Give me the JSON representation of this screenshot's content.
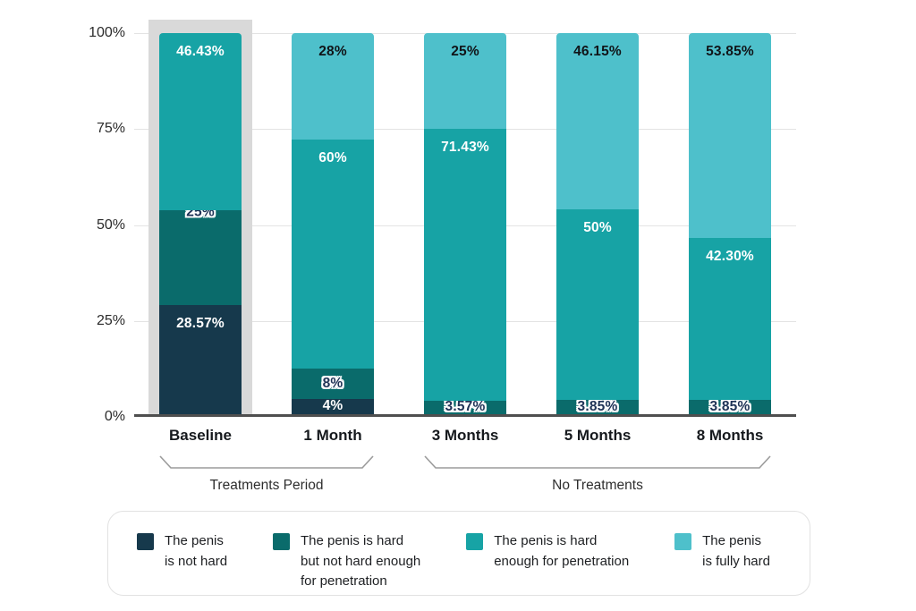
{
  "chart_data": {
    "type": "bar",
    "stacked": true,
    "title": "",
    "xlabel": "",
    "ylabel": "",
    "ylim": [
      0,
      100
    ],
    "yticks": [
      "0%",
      "25%",
      "50%",
      "75%",
      "100%"
    ],
    "grid": true,
    "legend_position": "bottom",
    "categories": [
      "Baseline",
      "1 Month",
      "3 Months",
      "5 Months",
      "8 Months"
    ],
    "series": [
      {
        "name": "The penis is not hard",
        "color": "#16394c",
        "values": [
          28.57,
          4,
          0,
          0,
          0
        ]
      },
      {
        "name": "The penis is hard but not hard enough for penetration",
        "color": "#0a6b6b",
        "values": [
          25,
          8,
          3.57,
          3.85,
          3.85
        ]
      },
      {
        "name": "The penis is hard enough for penetration",
        "color": "#17a3a5",
        "values": [
          46.43,
          60,
          71.43,
          50,
          42.3
        ]
      },
      {
        "name": "The penis is fully hard",
        "color": "#4ec0cb",
        "values": [
          0,
          28,
          25,
          46.15,
          53.85
        ]
      }
    ],
    "segment_labels": [
      [
        "28.57%",
        "4%",
        null,
        null,
        null
      ],
      [
        "25%",
        "8%",
        "3.57%",
        "3.85%",
        "3.85%"
      ],
      [
        "46.43%",
        "60%",
        "71.43%",
        "50%",
        "42.30%"
      ],
      [
        null,
        "28%",
        "25%",
        "46.15%",
        "53.85%"
      ]
    ],
    "label_styles": [
      [
        "white-top",
        "white-center",
        null,
        null,
        null
      ],
      [
        "outline-edge",
        "outline-center",
        "outline-center",
        "outline-center",
        "outline-center"
      ],
      [
        "white-top",
        "white-top",
        "white-top",
        "white-top",
        "white-top"
      ],
      [
        null,
        "dark-top",
        "dark-top",
        "dark-top",
        "dark-top"
      ]
    ],
    "highlight": {
      "category": "Baseline",
      "color": "#d9d9d9"
    },
    "groups": [
      {
        "label": "Treatments Period",
        "from": 0,
        "to": 1
      },
      {
        "label": "No Treatments",
        "from": 2,
        "to": 4
      }
    ],
    "legend_items": [
      {
        "lines": [
          "The penis",
          "is not hard"
        ]
      },
      {
        "lines": [
          "The penis is hard",
          "but not hard enough",
          "for penetration"
        ]
      },
      {
        "lines": [
          "The penis is hard",
          "enough for penetration"
        ]
      },
      {
        "lines": [
          "The penis",
          "is fully hard"
        ]
      }
    ]
  },
  "style": {
    "gridline_color": "#e3e3e3",
    "axis_color": "#4f4f4f",
    "bracket_color": "#9b9b9b"
  }
}
